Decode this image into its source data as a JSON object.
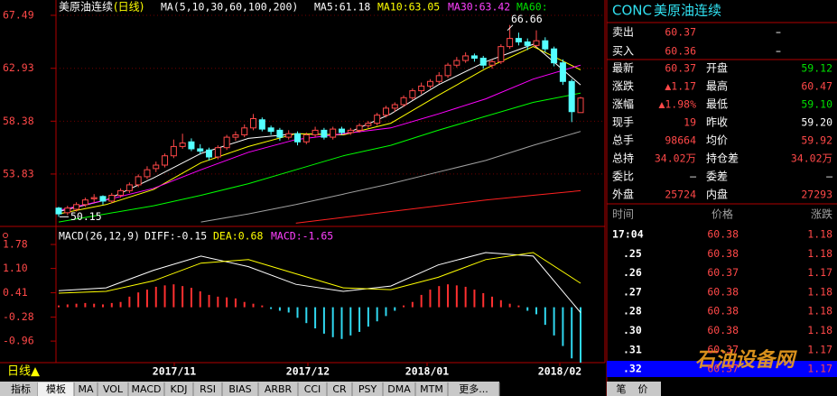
{
  "header": {
    "title": "美原油连续",
    "period": "(日线)",
    "ma_params": "MA(5,10,30,60,100,200)",
    "ma_values": [
      "MA5:61.18",
      "MA10:63.05",
      "MA30:63.42",
      "MA60:"
    ]
  },
  "chart_data": [
    {
      "type": "candlestick",
      "ohlc": [
        [
          50.9,
          51.0,
          50.15,
          50.4
        ],
        [
          50.5,
          51.1,
          50.3,
          50.9
        ],
        [
          50.8,
          51.4,
          50.6,
          51.2
        ],
        [
          51.2,
          51.8,
          51.0,
          51.6
        ],
        [
          51.7,
          52.1,
          51.4,
          51.8
        ],
        [
          51.9,
          52.0,
          51.2,
          51.5
        ],
        [
          51.5,
          52.2,
          51.3,
          52.0
        ],
        [
          52.0,
          52.6,
          51.8,
          52.4
        ],
        [
          52.4,
          53.1,
          52.2,
          52.9
        ],
        [
          52.9,
          53.8,
          52.7,
          53.6
        ],
        [
          53.6,
          54.5,
          53.4,
          54.2
        ],
        [
          54.3,
          54.9,
          54.0,
          54.6
        ],
        [
          54.6,
          55.6,
          54.4,
          55.4
        ],
        [
          55.4,
          56.8,
          55.2,
          56.2
        ],
        [
          56.2,
          57.3,
          56.0,
          56.5
        ],
        [
          56.6,
          56.9,
          55.8,
          56.0
        ],
        [
          56.0,
          56.4,
          55.5,
          55.8
        ],
        [
          55.9,
          56.1,
          55.0,
          55.3
        ],
        [
          55.3,
          56.3,
          55.1,
          56.1
        ],
        [
          56.1,
          57.2,
          55.9,
          57.0
        ],
        [
          57.0,
          57.5,
          56.7,
          57.2
        ],
        [
          57.2,
          58.1,
          57.0,
          57.8
        ],
        [
          57.8,
          59.0,
          57.6,
          58.6
        ],
        [
          58.5,
          58.7,
          57.5,
          57.7
        ],
        [
          57.8,
          58.0,
          57.2,
          57.5
        ],
        [
          57.6,
          57.8,
          56.7,
          57.0
        ],
        [
          57.0,
          57.6,
          56.8,
          57.3
        ],
        [
          57.3,
          57.5,
          56.3,
          56.6
        ],
        [
          56.6,
          57.4,
          56.4,
          57.2
        ],
        [
          57.2,
          57.9,
          57.0,
          57.6
        ],
        [
          57.6,
          57.8,
          56.8,
          57.0
        ],
        [
          57.0,
          57.9,
          56.8,
          57.7
        ],
        [
          57.7,
          57.9,
          57.2,
          57.4
        ],
        [
          57.4,
          57.8,
          57.2,
          57.6
        ],
        [
          57.6,
          58.2,
          57.4,
          58.0
        ],
        [
          58.0,
          58.4,
          57.8,
          58.2
        ],
        [
          58.2,
          59.1,
          58.0,
          58.9
        ],
        [
          58.9,
          59.7,
          58.7,
          59.5
        ],
        [
          59.5,
          60.0,
          59.2,
          59.8
        ],
        [
          59.8,
          60.6,
          59.6,
          60.4
        ],
        [
          60.4,
          61.2,
          60.2,
          61.0
        ],
        [
          61.0,
          61.7,
          60.7,
          61.4
        ],
        [
          61.4,
          62.0,
          61.2,
          61.8
        ],
        [
          61.8,
          62.6,
          61.6,
          62.3
        ],
        [
          62.3,
          63.4,
          62.1,
          63.2
        ],
        [
          63.2,
          63.9,
          63.0,
          63.6
        ],
        [
          63.6,
          64.3,
          63.4,
          64.0
        ],
        [
          64.0,
          64.2,
          63.5,
          63.8
        ],
        [
          63.8,
          64.0,
          62.9,
          63.2
        ],
        [
          63.2,
          63.7,
          62.9,
          63.5
        ],
        [
          63.5,
          65.0,
          63.3,
          64.8
        ],
        [
          64.8,
          66.66,
          64.6,
          65.5
        ],
        [
          65.5,
          66.0,
          64.9,
          65.2
        ],
        [
          65.2,
          65.5,
          64.5,
          64.9
        ],
        [
          64.9,
          66.2,
          64.7,
          65.3
        ],
        [
          65.3,
          65.6,
          64.3,
          64.6
        ],
        [
          64.6,
          64.8,
          63.1,
          63.4
        ],
        [
          63.4,
          63.7,
          61.5,
          61.8
        ],
        [
          61.8,
          62.0,
          58.3,
          59.2
        ],
        [
          59.12,
          60.47,
          59.1,
          60.37
        ]
      ],
      "up_color": "#ff4848",
      "down_color": "#54ffff",
      "series": [
        {
          "color": "#ffffff",
          "values": [
            50.6,
            51.6,
            53.5,
            55.6,
            56.9,
            57.3,
            57.2,
            59.0,
            61.5,
            63.5,
            65.0,
            61.5
          ]
        },
        {
          "color": "#ffff00",
          "values": [
            50.4,
            51.2,
            52.5,
            54.8,
            56.2,
            57.3,
            57.2,
            58.2,
            60.6,
            62.9,
            64.8,
            62.8
          ]
        },
        {
          "color": "#ff00ff",
          "values": [
            50.7,
            51.6,
            52.6,
            54.2,
            55.7,
            56.8,
            57.3,
            57.8,
            59.0,
            60.3,
            62.0,
            63.2
          ]
        },
        {
          "color": "#00ff00",
          "values": [
            49.7,
            50.4,
            51.1,
            52.0,
            53.0,
            54.2,
            55.4,
            56.3,
            57.6,
            58.8,
            60.0,
            60.8
          ]
        },
        {
          "color": "#a0a0a0",
          "values": [
            null,
            null,
            null,
            49.7,
            50.4,
            51.2,
            52.1,
            53.0,
            54.0,
            55.0,
            56.3,
            57.5
          ]
        },
        {
          "color": "#ff2020",
          "values": [
            null,
            null,
            null,
            null,
            null,
            49.6,
            50.1,
            50.6,
            51.1,
            51.6,
            52.0,
            52.4
          ]
        }
      ],
      "annotations": [
        66.66,
        50.15
      ],
      "ylim": [
        49.4,
        68.42
      ],
      "yticks": [
        53.83,
        58.38,
        62.93,
        67.49
      ],
      "grid": true
    },
    {
      "type": "bar",
      "title": "MACD(26,12,9)",
      "legend": [
        "DIFF:-0.15",
        "DEA:0.68",
        "MACD:-1.65"
      ],
      "values": [
        0.05,
        0.08,
        0.1,
        0.12,
        0.1,
        0.08,
        0.12,
        0.15,
        0.3,
        0.42,
        0.5,
        0.58,
        0.62,
        0.65,
        0.6,
        0.55,
        0.45,
        0.35,
        0.3,
        0.28,
        0.25,
        0.15,
        0.1,
        0.05,
        -0.05,
        -0.1,
        -0.15,
        -0.3,
        -0.45,
        -0.6,
        -0.75,
        -0.85,
        -0.9,
        -0.8,
        -0.7,
        -0.55,
        -0.4,
        -0.25,
        -0.1,
        0.05,
        0.15,
        0.35,
        0.5,
        0.6,
        0.65,
        0.62,
        0.58,
        0.5,
        0.4,
        0.3,
        0.2,
        0.1,
        0.05,
        -0.1,
        -0.2,
        -0.5,
        -0.8,
        -1.1,
        -1.45,
        -1.65
      ],
      "up_color": "#ff3030",
      "down_color": "#30d8f0",
      "series": [
        {
          "color": "#ffffff",
          "values": [
            0.47,
            0.55,
            1.05,
            1.45,
            1.15,
            0.65,
            0.45,
            0.6,
            1.2,
            1.55,
            1.45,
            -0.15
          ]
        },
        {
          "color": "#ffff00",
          "values": [
            0.4,
            0.45,
            0.75,
            1.25,
            1.35,
            0.95,
            0.55,
            0.5,
            0.85,
            1.35,
            1.55,
            0.68
          ]
        }
      ],
      "ylim": [
        -1.52,
        2.19
      ],
      "yticks": [
        1.78,
        {
          "value": 1.1,
          "label": "1.10"
        },
        0.41,
        -0.28,
        -0.96
      ]
    }
  ],
  "x_axis": {
    "period_button": "日线▲",
    "labels": [
      "2017/11",
      "2017/12",
      "2018/01",
      "2018/02"
    ]
  },
  "toolbar": [
    "指标",
    "模板",
    "MA",
    "VOL",
    "MACD",
    "KDJ",
    "RSI",
    "BIAS",
    "ARBR",
    "CCI",
    "CR",
    "PSY",
    "DMA",
    "MTM",
    "更多..."
  ],
  "quote": {
    "code": "CONC",
    "name": "美原油连续",
    "rows": [
      [
        "卖出",
        "60.37",
        "–"
      ],
      [
        "买入",
        "60.36",
        "–"
      ],
      [
        "最新",
        "60.37",
        "开盘",
        "59.12"
      ],
      [
        "涨跌",
        "▲1.17",
        "最高",
        "60.47"
      ],
      [
        "涨幅",
        "▲1.98%",
        "最低",
        "59.10"
      ],
      [
        "现手",
        "19",
        "昨收",
        "59.20"
      ],
      [
        "总手",
        "98664",
        "均价",
        "59.92"
      ],
      [
        "总持",
        "34.02万",
        "持仓差",
        "34.02万"
      ],
      [
        "委比",
        "–",
        "委差",
        "–"
      ],
      [
        "外盘",
        "25724",
        "内盘",
        "27293"
      ]
    ],
    "tick_header": [
      "时间",
      "价格",
      "涨跌"
    ],
    "ticks": [
      [
        "17:04",
        "60.38",
        "1.18"
      ],
      [
        ".25",
        "60.38",
        "1.18"
      ],
      [
        ".26",
        "60.37",
        "1.17"
      ],
      [
        ".27",
        "60.38",
        "1.18"
      ],
      [
        ".28",
        "60.38",
        "1.18"
      ],
      [
        ".30",
        "60.38",
        "1.18"
      ],
      [
        ".31",
        "60.37",
        "1.17"
      ],
      [
        ".32",
        "60.37",
        "1.17"
      ]
    ],
    "tabs": [
      "笔",
      "价"
    ]
  },
  "watermark": "石油设备网"
}
